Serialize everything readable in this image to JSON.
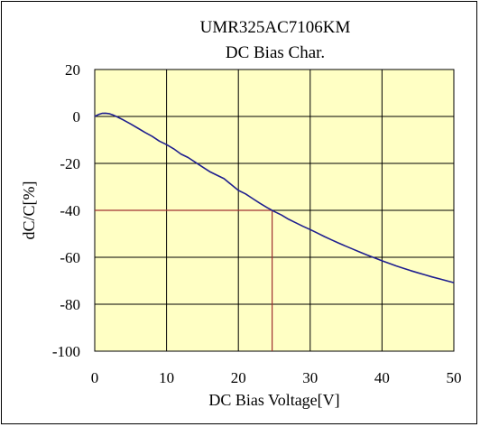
{
  "chart_data": {
    "type": "line",
    "title": "UMR325AC7106KM",
    "subtitle": "DC Bias Char.",
    "xlabel": "DC Bias Voltage[V]",
    "ylabel": "dC/C[%]",
    "xlim": [
      0,
      50
    ],
    "ylim": [
      -100,
      20
    ],
    "x_ticks": [
      "0",
      "10",
      "20",
      "30",
      "40",
      "50"
    ],
    "y_ticks": [
      "20",
      "0",
      "-20",
      "-40",
      "-60",
      "-80",
      "-100"
    ],
    "x_tick_values": [
      0,
      10,
      20,
      30,
      40,
      50
    ],
    "y_tick_values": [
      20,
      0,
      -20,
      -40,
      -60,
      -80,
      -100
    ],
    "grid": true,
    "plot_background": "#ffffc4",
    "series": [
      {
        "color": "#1f1f8f",
        "x": [
          0,
          0.5,
          1,
          1.5,
          2,
          2.5,
          3,
          4,
          5,
          6,
          7,
          8,
          9,
          10,
          11,
          12,
          13,
          14,
          15,
          16,
          17,
          18,
          19,
          20,
          21,
          22,
          23,
          24,
          25,
          26,
          27,
          28,
          29,
          30,
          31,
          32,
          33,
          34,
          35,
          36,
          37,
          38,
          39,
          40,
          41,
          42,
          43,
          44,
          45,
          46,
          47,
          48,
          49,
          50
        ],
        "y": [
          0,
          0.8,
          1.3,
          1.4,
          1.2,
          0.7,
          0,
          -1.5,
          -3.2,
          -5,
          -6.8,
          -8.5,
          -10.5,
          -12,
          -13.8,
          -16,
          -17.5,
          -19.5,
          -21.5,
          -23.5,
          -25,
          -26.5,
          -29,
          -31.5,
          -33,
          -35,
          -37,
          -38.8,
          -40.5,
          -42,
          -43.8,
          -45.3,
          -46.8,
          -48.2,
          -49.7,
          -51.2,
          -52.6,
          -54,
          -55.3,
          -56.6,
          -57.9,
          -59.1,
          -60.3,
          -61.5,
          -62.6,
          -63.7,
          -64.7,
          -65.7,
          -66.6,
          -67.5,
          -68.4,
          -69.2,
          -70,
          -70.8
        ]
      }
    ],
    "reference_lines": [
      {
        "color": "#a03030",
        "x": [
          0,
          24.7,
          24.7
        ],
        "y": [
          -40,
          -40,
          -100
        ]
      }
    ]
  }
}
